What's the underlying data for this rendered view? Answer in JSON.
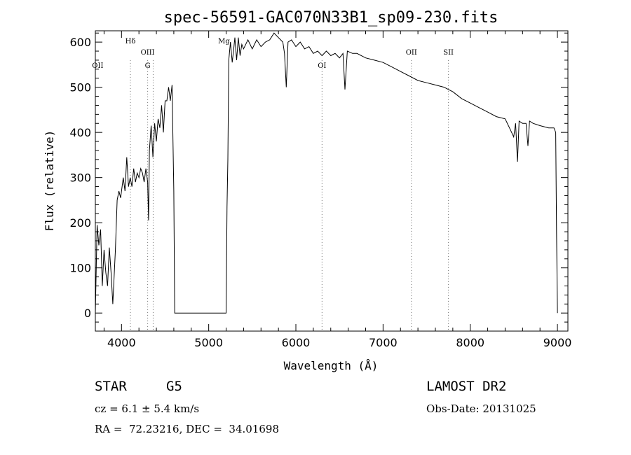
{
  "chart_data": {
    "type": "line",
    "title": "spec-56591-GAC070N33B1_sp09-230.fits",
    "xlabel": "Wavelength (Å)",
    "ylabel": "Flux (relative)",
    "xlim": [
      3700,
      9120
    ],
    "ylim": [
      -40,
      625
    ],
    "xticks": [
      4000,
      5000,
      6000,
      7000,
      8000,
      9000
    ],
    "yticks": [
      0,
      100,
      200,
      300,
      400,
      500,
      600
    ],
    "grid": false,
    "series": [
      {
        "x": [
          3700,
          3720,
          3740,
          3760,
          3780,
          3800,
          3820,
          3840,
          3860,
          3880,
          3900,
          3930,
          3950,
          3970,
          3990,
          4000,
          4020,
          4040,
          4060,
          4080,
          4100,
          4120,
          4140,
          4160,
          4180,
          4200,
          4220,
          4240,
          4260,
          4280,
          4300,
          4310,
          4320,
          4340,
          4360,
          4380,
          4400,
          4420,
          4440,
          4460,
          4480,
          4500,
          4520,
          4540,
          4560,
          4580,
          4600,
          4610,
          4620,
          5200,
          5210,
          5220,
          5230,
          5250,
          5270,
          5290,
          5300,
          5320,
          5340,
          5360,
          5380,
          5400,
          5450,
          5500,
          5550,
          5600,
          5650,
          5700,
          5750,
          5800,
          5850,
          5870,
          5890,
          5910,
          5950,
          6000,
          6050,
          6100,
          6150,
          6200,
          6250,
          6300,
          6350,
          6400,
          6450,
          6500,
          6540,
          6563,
          6590,
          6650,
          6700,
          6800,
          6900,
          7000,
          7100,
          7200,
          7300,
          7400,
          7500,
          7600,
          7700,
          7800,
          7900,
          8000,
          8100,
          8200,
          8300,
          8400,
          8450,
          8498,
          8520,
          8542,
          8560,
          8600,
          8640,
          8662,
          8680,
          8720,
          8800,
          8900,
          8960,
          8980,
          8990,
          9000
        ],
        "values": [
          0,
          195,
          150,
          185,
          60,
          140,
          90,
          60,
          145,
          90,
          20,
          140,
          250,
          270,
          255,
          270,
          300,
          270,
          345,
          280,
          300,
          280,
          320,
          290,
          310,
          300,
          320,
          310,
          290,
          320,
          290,
          205,
          360,
          415,
          345,
          420,
          380,
          430,
          410,
          460,
          400,
          470,
          470,
          500,
          470,
          505,
          270,
          0,
          0,
          0,
          235,
          340,
          560,
          600,
          555,
          590,
          610,
          560,
          610,
          570,
          595,
          585,
          605,
          585,
          605,
          590,
          600,
          605,
          620,
          610,
          600,
          575,
          500,
          600,
          605,
          590,
          600,
          585,
          590,
          575,
          580,
          570,
          580,
          570,
          575,
          565,
          575,
          495,
          580,
          575,
          575,
          565,
          560,
          555,
          545,
          535,
          525,
          515,
          510,
          505,
          500,
          490,
          475,
          465,
          455,
          445,
          435,
          430,
          410,
          390,
          420,
          335,
          425,
          420,
          420,
          370,
          425,
          420,
          415,
          410,
          410,
          400,
          180,
          0
        ]
      }
    ],
    "lines": [
      {
        "label": "OII",
        "x": 3727,
        "row": 3
      },
      {
        "label": "Hδ",
        "x": 4102,
        "row": 1
      },
      {
        "label": "OIII",
        "x": 4300,
        "row": 2
      },
      {
        "label": "G",
        "x": 4300,
        "row": 3
      },
      {
        "label": "Mg",
        "x": 5175,
        "row": 1
      },
      {
        "label": "OI",
        "x": 6300,
        "row": 3
      },
      {
        "label": "OII",
        "x": 7325,
        "row": 2
      },
      {
        "label": "SII",
        "x": 7750,
        "row": 2
      }
    ],
    "dotted_lines_x": [
      4102,
      4300,
      4363,
      6300,
      7325,
      7750
    ]
  },
  "info": {
    "object_class": "STAR",
    "subclass": "G5",
    "survey": "LAMOST DR2",
    "cz": "cz = 6.1 ± 5.4 km/s",
    "obs_date": "Obs-Date: 20131025",
    "coords": "RA =  72.23216, DEC =  34.01698"
  }
}
